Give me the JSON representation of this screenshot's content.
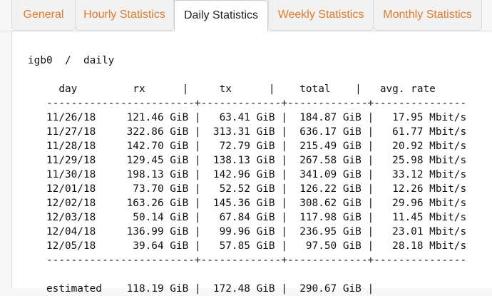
{
  "tabs": [
    {
      "label": "General",
      "active": false
    },
    {
      "label": "Hourly Statistics",
      "active": false
    },
    {
      "label": "Daily Statistics",
      "active": true
    },
    {
      "label": "Weekly Statistics",
      "active": false
    },
    {
      "label": "Monthly Statistics",
      "active": false
    }
  ],
  "colors": {
    "tab_link": "#e07a2c",
    "tab_active_text": "#222222"
  },
  "report": {
    "title": "igb0  /  daily",
    "header": "     day         rx      |     tx      |    total    |   avg. rate",
    "separator_top": "   ------------------------+-------------+-------------+---------------",
    "rows": [
      "   11/26/18     121.46 GiB |   63.41 GiB |  184.87 GiB |   17.95 Mbit/s",
      "   11/27/18     322.86 GiB |  313.31 GiB |  636.17 GiB |   61.77 Mbit/s",
      "   11/28/18     142.70 GiB |   72.79 GiB |  215.49 GiB |   20.92 Mbit/s",
      "   11/29/18     129.45 GiB |  138.13 GiB |  267.58 GiB |   25.98 Mbit/s",
      "   11/30/18     198.13 GiB |  142.96 GiB |  341.09 GiB |   33.12 Mbit/s",
      "   12/01/18      73.70 GiB |   52.52 GiB |  126.22 GiB |   12.26 Mbit/s",
      "   12/02/18     163.26 GiB |  145.36 GiB |  308.62 GiB |   29.96 Mbit/s",
      "   12/03/18      50.14 GiB |   67.84 GiB |  117.98 GiB |   11.45 Mbit/s",
      "   12/04/18     136.99 GiB |   99.96 GiB |  236.95 GiB |   23.01 Mbit/s",
      "   12/05/18      39.64 GiB |   57.85 GiB |   97.50 GiB |   28.18 Mbit/s"
    ],
    "separator_bottom": "   ------------------------+-------------+-------------+---------------",
    "estimated": "   estimated    118.19 GiB |  172.48 GiB |  290.67 GiB |"
  }
}
